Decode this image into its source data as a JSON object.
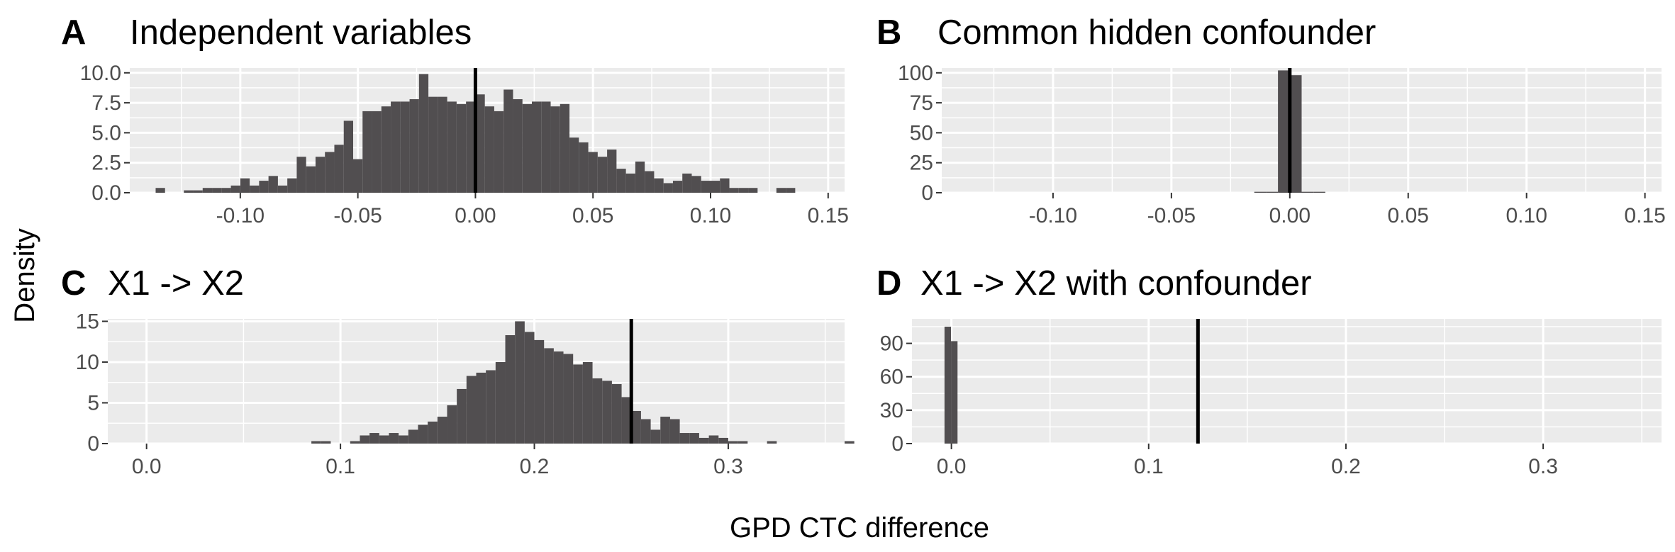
{
  "figure": {
    "xlabel": "GPD CTC difference",
    "ylabel": "Density",
    "colors": {
      "panel_bg": "#ebebeb",
      "grid": "#ffffff",
      "bar": "#514e50",
      "vline": "#000000",
      "tick": "#4d4d4d"
    }
  },
  "chart_data": [
    {
      "type": "bar",
      "label": "A",
      "title": "Independent variables",
      "xlim": [
        -0.147,
        0.157
      ],
      "ylim": [
        0,
        10.4
      ],
      "xticks": [
        -0.1,
        -0.05,
        0.0,
        0.05,
        0.1,
        0.15
      ],
      "xtick_labels": [
        "-0.10",
        "-0.05",
        "0.00",
        "0.05",
        "0.10",
        "0.15"
      ],
      "yticks": [
        0,
        2.5,
        5,
        7.5,
        10
      ],
      "ytick_labels": [
        "0.0",
        "2.5",
        "5.0",
        "7.5",
        "10.0"
      ],
      "bin_start": -0.136,
      "bin_width": 0.004,
      "values": [
        0.4,
        0,
        0,
        0.2,
        0.2,
        0.4,
        0.4,
        0.4,
        0.6,
        1.2,
        0.6,
        1.0,
        1.4,
        0.6,
        1.2,
        3.0,
        2.2,
        3.0,
        3.4,
        4.0,
        6.0,
        2.8,
        6.8,
        6.8,
        7.2,
        7.6,
        7.6,
        7.8,
        9.9,
        8.0,
        8.0,
        7.6,
        7.4,
        7.6,
        8.2,
        7.2,
        6.8,
        8.6,
        7.8,
        7.4,
        7.6,
        7.6,
        7.2,
        7.4,
        4.6,
        4.2,
        3.4,
        3.0,
        3.6,
        2.0,
        1.6,
        2.6,
        1.8,
        1.2,
        0.8,
        1.0,
        1.6,
        1.4,
        1.0,
        1.0,
        1.2,
        0.4,
        0.4,
        0.4,
        0,
        0,
        0.4,
        0.4
      ],
      "vline": 0.0
    },
    {
      "type": "bar",
      "label": "B",
      "title": "Common hidden confounder",
      "xlim": [
        -0.147,
        0.157
      ],
      "ylim": [
        0,
        104
      ],
      "xticks": [
        -0.1,
        -0.05,
        0.0,
        0.05,
        0.1,
        0.15
      ],
      "xtick_labels": [
        "-0.10",
        "-0.05",
        "0.00",
        "0.05",
        "0.10",
        "0.15"
      ],
      "yticks": [
        0,
        25,
        50,
        75,
        100
      ],
      "ytick_labels": [
        "0",
        "25",
        "50",
        "75",
        "100"
      ],
      "bin_start": -0.015,
      "bin_width": 0.005,
      "values": [
        0.8,
        0.8,
        102,
        98,
        0.8,
        0.8
      ],
      "vline": 0.0
    },
    {
      "type": "bar",
      "label": "C",
      "title": "X1 -> X2",
      "xlim": [
        -0.02,
        0.36
      ],
      "ylim": [
        0,
        15.3
      ],
      "xticks": [
        0.0,
        0.1,
        0.2,
        0.3
      ],
      "xtick_labels": [
        "0.0",
        "0.1",
        "0.2",
        "0.3"
      ],
      "yticks": [
        0,
        5,
        10,
        15
      ],
      "ytick_labels": [
        "0",
        "5",
        "10",
        "15"
      ],
      "bin_start": 0.085,
      "bin_width": 0.005,
      "values": [
        0.3,
        0.3,
        0,
        0,
        0.3,
        1.0,
        1.3,
        1.0,
        1.3,
        1.0,
        1.7,
        2.3,
        2.7,
        3.3,
        4.7,
        6.7,
        8.3,
        8.7,
        9.0,
        10.0,
        13.3,
        15.0,
        13.7,
        12.7,
        11.7,
        11.3,
        11.0,
        9.7,
        10.0,
        8.0,
        7.7,
        7.3,
        5.7,
        4.0,
        3.0,
        1.7,
        3.3,
        3.0,
        1.3,
        1.3,
        0.7,
        1.0,
        0.7,
        0.3,
        0.3,
        0,
        0,
        0.3,
        0,
        0,
        0,
        0,
        0,
        0,
        0,
        0.3
      ],
      "vline": 0.25
    },
    {
      "type": "bar",
      "label": "D",
      "title": "X1 -> X2 with confounder",
      "xlim": [
        -0.02,
        0.36
      ],
      "ylim": [
        0,
        112
      ],
      "xticks": [
        0.0,
        0.1,
        0.2,
        0.3
      ],
      "xtick_labels": [
        "0.0",
        "0.1",
        "0.2",
        "0.3"
      ],
      "yticks": [
        0,
        30,
        60,
        90
      ],
      "ytick_labels": [
        "0",
        "30",
        "60",
        "90"
      ],
      "bin_start": -0.0035,
      "bin_width": 0.0033,
      "values": [
        105,
        92
      ],
      "vline": 0.125
    }
  ]
}
